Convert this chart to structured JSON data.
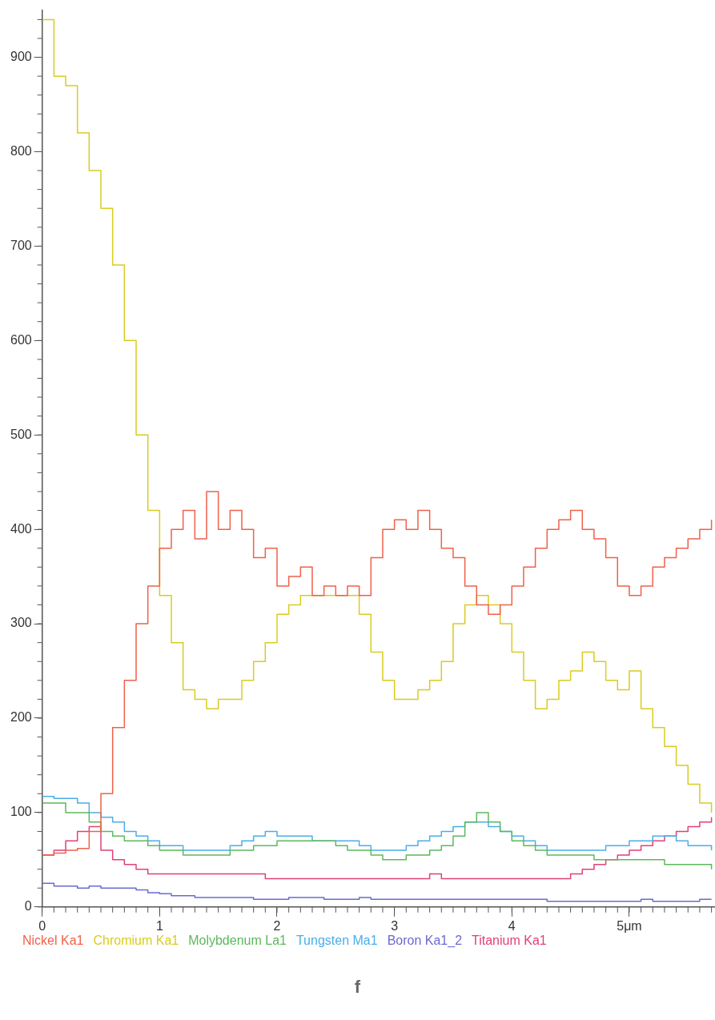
{
  "chart_data": {
    "type": "step",
    "x": [
      0,
      0.1,
      0.2,
      0.3,
      0.4,
      0.5,
      0.6,
      0.7,
      0.8,
      0.9,
      1,
      1.1,
      1.2,
      1.3,
      1.4,
      1.5,
      1.6,
      1.7,
      1.8,
      1.9,
      2,
      2.1,
      2.2,
      2.3,
      2.4,
      2.5,
      2.6,
      2.7,
      2.8,
      2.9,
      3,
      3.1,
      3.2,
      3.3,
      3.4,
      3.5,
      3.6,
      3.7,
      3.8,
      3.9,
      4,
      4.1,
      4.2,
      4.3,
      4.4,
      4.5,
      4.6,
      4.7,
      4.8,
      4.9,
      5,
      5.1,
      5.2,
      5.3,
      5.4,
      5.5,
      5.6,
      5.7
    ],
    "series": [
      {
        "name": "Nickel Ka1",
        "color": "#f0604a",
        "values": [
          55,
          57,
          60,
          62,
          80,
          120,
          190,
          240,
          300,
          340,
          380,
          400,
          420,
          390,
          440,
          400,
          420,
          400,
          370,
          380,
          340,
          350,
          360,
          330,
          340,
          330,
          340,
          330,
          370,
          400,
          410,
          400,
          420,
          400,
          380,
          370,
          340,
          320,
          310,
          320,
          340,
          360,
          380,
          400,
          410,
          420,
          400,
          390,
          370,
          340,
          330,
          340,
          360,
          370,
          380,
          390,
          400,
          410
        ]
      },
      {
        "name": "Chromium Ka1",
        "color": "#d9cc1f",
        "values": [
          940,
          880,
          870,
          820,
          780,
          740,
          680,
          600,
          500,
          420,
          330,
          280,
          230,
          220,
          210,
          220,
          220,
          240,
          260,
          280,
          310,
          320,
          330,
          330,
          330,
          330,
          330,
          310,
          270,
          240,
          220,
          220,
          230,
          240,
          260,
          300,
          320,
          330,
          320,
          300,
          270,
          240,
          210,
          220,
          240,
          250,
          270,
          260,
          240,
          230,
          250,
          210,
          190,
          170,
          150,
          130,
          110,
          100
        ]
      },
      {
        "name": "Molybdenum La1",
        "color": "#5cb85c",
        "values": [
          110,
          110,
          100,
          100,
          90,
          80,
          75,
          70,
          70,
          65,
          60,
          60,
          55,
          55,
          55,
          55,
          60,
          60,
          65,
          65,
          70,
          70,
          70,
          70,
          70,
          65,
          60,
          60,
          55,
          50,
          50,
          55,
          55,
          60,
          65,
          75,
          90,
          100,
          90,
          80,
          70,
          65,
          60,
          55,
          55,
          55,
          55,
          50,
          50,
          50,
          50,
          50,
          50,
          45,
          45,
          45,
          45,
          40
        ]
      },
      {
        "name": "Tungsten Ma1",
        "color": "#4aaee8",
        "values": [
          117,
          115,
          115,
          110,
          100,
          95,
          90,
          80,
          75,
          70,
          65,
          65,
          60,
          60,
          60,
          60,
          65,
          70,
          75,
          80,
          75,
          75,
          75,
          70,
          70,
          70,
          70,
          65,
          60,
          60,
          60,
          65,
          70,
          75,
          80,
          85,
          90,
          90,
          85,
          80,
          75,
          70,
          65,
          60,
          60,
          60,
          60,
          60,
          65,
          65,
          70,
          70,
          75,
          75,
          70,
          65,
          65,
          60
        ]
      },
      {
        "name": "Boron Ka1_2",
        "color": "#6a6ad0",
        "values": [
          25,
          22,
          22,
          20,
          22,
          20,
          20,
          20,
          18,
          15,
          14,
          12,
          12,
          10,
          10,
          10,
          10,
          10,
          8,
          8,
          8,
          10,
          10,
          10,
          8,
          8,
          8,
          10,
          8,
          8,
          8,
          8,
          8,
          8,
          8,
          8,
          8,
          8,
          8,
          8,
          8,
          8,
          8,
          6,
          6,
          6,
          6,
          6,
          6,
          6,
          6,
          8,
          6,
          6,
          6,
          6,
          8,
          8
        ]
      },
      {
        "name": "Titanium Ka1",
        "color": "#e0407a",
        "values": [
          55,
          60,
          70,
          80,
          85,
          60,
          50,
          45,
          40,
          35,
          35,
          35,
          35,
          35,
          35,
          35,
          35,
          35,
          35,
          30,
          30,
          30,
          30,
          30,
          30,
          30,
          30,
          30,
          30,
          30,
          30,
          30,
          30,
          35,
          30,
          30,
          30,
          30,
          30,
          30,
          30,
          30,
          30,
          30,
          30,
          35,
          40,
          45,
          50,
          55,
          60,
          65,
          70,
          75,
          80,
          85,
          90,
          95
        ]
      }
    ],
    "xlim": [
      0,
      5.73
    ],
    "xticks": [
      0,
      1,
      2,
      3,
      4,
      {
        "value": 5,
        "label": "5μm"
      }
    ],
    "ylim": [
      0,
      950
    ],
    "yticks": [
      0,
      100,
      200,
      300,
      400,
      500,
      600,
      700,
      800,
      900
    ],
    "grid": false,
    "legend": "bottom",
    "marker": "none",
    "annotations": [
      "f"
    ]
  }
}
